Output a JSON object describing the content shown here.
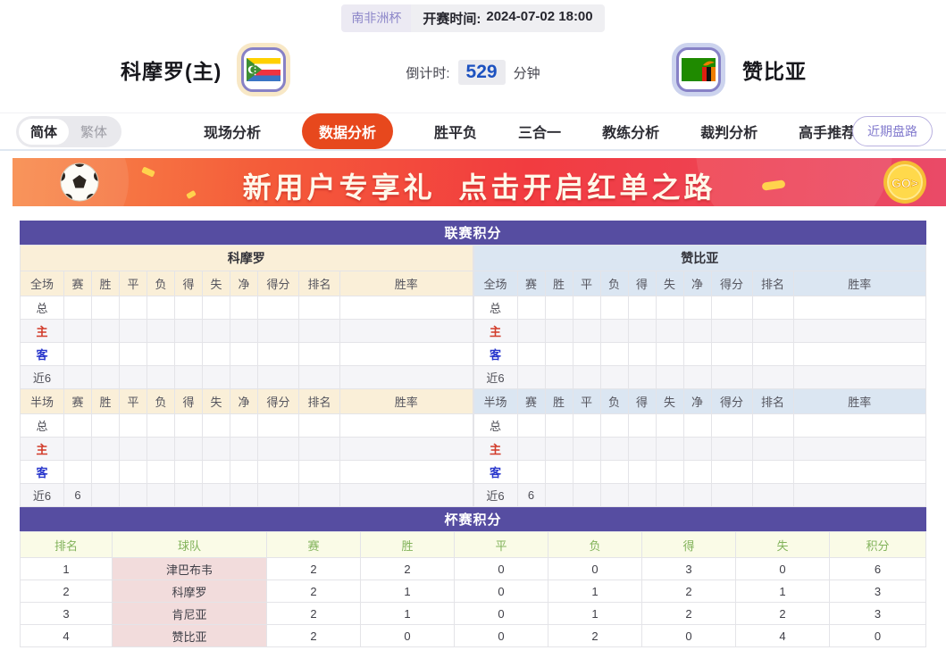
{
  "colors": {
    "accent_purple": "#564da1",
    "active_tab_orange": "#e7481d",
    "countdown_blue": "#1d52c0",
    "cream_panel": "#faefd8",
    "blue_panel": "#dbe6f2",
    "cup_header_bg": "#fafbe7",
    "cup_header_text": "#82b35b",
    "team_cell_pink": "#f2dcdc"
  },
  "meta": {
    "league_badge": "南非洲杯",
    "kickoff_label": "开赛时间:",
    "kickoff_time": "2024-07-02 18:00"
  },
  "teams": {
    "home": {
      "name": "科摩罗(主)",
      "flag": "comoros-flag"
    },
    "away": {
      "name": "赞比亚",
      "flag": "zambia-flag"
    }
  },
  "countdown": {
    "label": "倒计时:",
    "value": "529",
    "unit": "分钟"
  },
  "nav": {
    "lang_toggle": [
      {
        "label": "简体",
        "selected": true
      },
      {
        "label": "繁体",
        "selected": false
      }
    ],
    "tabs": [
      {
        "label": "现场分析",
        "active": false
      },
      {
        "label": "数据分析",
        "active": true
      },
      {
        "label": "胜平负",
        "active": false
      },
      {
        "label": "三合一",
        "active": false
      },
      {
        "label": "教练分析",
        "active": false
      },
      {
        "label": "裁判分析",
        "active": false
      },
      {
        "label": "高手推荐",
        "active": false
      }
    ],
    "recent_button": "近期盘路"
  },
  "banner": {
    "text": "新用户专享礼  点击开启红单之路",
    "go_label": "GO>"
  },
  "league_section": {
    "title": "联赛积分",
    "halves": [
      {
        "team": "科摩罗",
        "theme": "cream",
        "sections": [
          {
            "header": [
              "全场",
              "赛",
              "胜",
              "平",
              "负",
              "得",
              "失",
              "净",
              "得分",
              "排名",
              "胜率"
            ],
            "rows": [
              {
                "label": "总",
                "style": "total",
                "cells": [
                  "",
                  "",
                  "",
                  "",
                  "",
                  "",
                  "",
                  "",
                  "",
                  ""
                ]
              },
              {
                "label": "主",
                "style": "home",
                "cells": [
                  "",
                  "",
                  "",
                  "",
                  "",
                  "",
                  "",
                  "",
                  "",
                  ""
                ]
              },
              {
                "label": "客",
                "style": "away",
                "cells": [
                  "",
                  "",
                  "",
                  "",
                  "",
                  "",
                  "",
                  "",
                  "",
                  ""
                ]
              },
              {
                "label": "近6",
                "style": "recent",
                "cells": [
                  "",
                  "",
                  "",
                  "",
                  "",
                  "",
                  "",
                  "",
                  "",
                  ""
                ]
              }
            ]
          },
          {
            "header": [
              "半场",
              "赛",
              "胜",
              "平",
              "负",
              "得",
              "失",
              "净",
              "得分",
              "排名",
              "胜率"
            ],
            "rows": [
              {
                "label": "总",
                "style": "total",
                "cells": [
                  "",
                  "",
                  "",
                  "",
                  "",
                  "",
                  "",
                  "",
                  "",
                  ""
                ]
              },
              {
                "label": "主",
                "style": "home",
                "cells": [
                  "",
                  "",
                  "",
                  "",
                  "",
                  "",
                  "",
                  "",
                  "",
                  ""
                ]
              },
              {
                "label": "客",
                "style": "away",
                "cells": [
                  "",
                  "",
                  "",
                  "",
                  "",
                  "",
                  "",
                  "",
                  "",
                  ""
                ]
              },
              {
                "label": "近6",
                "style": "recent",
                "cells": [
                  "6",
                  "",
                  "",
                  "",
                  "",
                  "",
                  "",
                  "",
                  "",
                  ""
                ]
              }
            ]
          }
        ]
      },
      {
        "team": "赞比亚",
        "theme": "blue",
        "sections": [
          {
            "header": [
              "全场",
              "赛",
              "胜",
              "平",
              "负",
              "得",
              "失",
              "净",
              "得分",
              "排名",
              "胜率"
            ],
            "rows": [
              {
                "label": "总",
                "style": "total",
                "cells": [
                  "",
                  "",
                  "",
                  "",
                  "",
                  "",
                  "",
                  "",
                  "",
                  ""
                ]
              },
              {
                "label": "主",
                "style": "home",
                "cells": [
                  "",
                  "",
                  "",
                  "",
                  "",
                  "",
                  "",
                  "",
                  "",
                  ""
                ]
              },
              {
                "label": "客",
                "style": "away",
                "cells": [
                  "",
                  "",
                  "",
                  "",
                  "",
                  "",
                  "",
                  "",
                  "",
                  ""
                ]
              },
              {
                "label": "近6",
                "style": "recent",
                "cells": [
                  "",
                  "",
                  "",
                  "",
                  "",
                  "",
                  "",
                  "",
                  "",
                  ""
                ]
              }
            ]
          },
          {
            "header": [
              "半场",
              "赛",
              "胜",
              "平",
              "负",
              "得",
              "失",
              "净",
              "得分",
              "排名",
              "胜率"
            ],
            "rows": [
              {
                "label": "总",
                "style": "total",
                "cells": [
                  "",
                  "",
                  "",
                  "",
                  "",
                  "",
                  "",
                  "",
                  "",
                  ""
                ]
              },
              {
                "label": "主",
                "style": "home",
                "cells": [
                  "",
                  "",
                  "",
                  "",
                  "",
                  "",
                  "",
                  "",
                  "",
                  ""
                ]
              },
              {
                "label": "客",
                "style": "away",
                "cells": [
                  "",
                  "",
                  "",
                  "",
                  "",
                  "",
                  "",
                  "",
                  "",
                  ""
                ]
              },
              {
                "label": "近6",
                "style": "recent",
                "cells": [
                  "6",
                  "",
                  "",
                  "",
                  "",
                  "",
                  "",
                  "",
                  "",
                  ""
                ]
              }
            ]
          }
        ]
      }
    ]
  },
  "cup_section": {
    "title": "杯赛积分",
    "columns": [
      "排名",
      "球队",
      "赛",
      "胜",
      "平",
      "负",
      "得",
      "失",
      "积分"
    ],
    "rows": [
      [
        "1",
        "津巴布韦",
        "2",
        "2",
        "0",
        "0",
        "3",
        "0",
        "6"
      ],
      [
        "2",
        "科摩罗",
        "2",
        "1",
        "0",
        "1",
        "2",
        "1",
        "3"
      ],
      [
        "3",
        "肯尼亚",
        "2",
        "1",
        "0",
        "1",
        "2",
        "2",
        "3"
      ],
      [
        "4",
        "赞比亚",
        "2",
        "0",
        "0",
        "2",
        "0",
        "4",
        "0"
      ]
    ]
  }
}
